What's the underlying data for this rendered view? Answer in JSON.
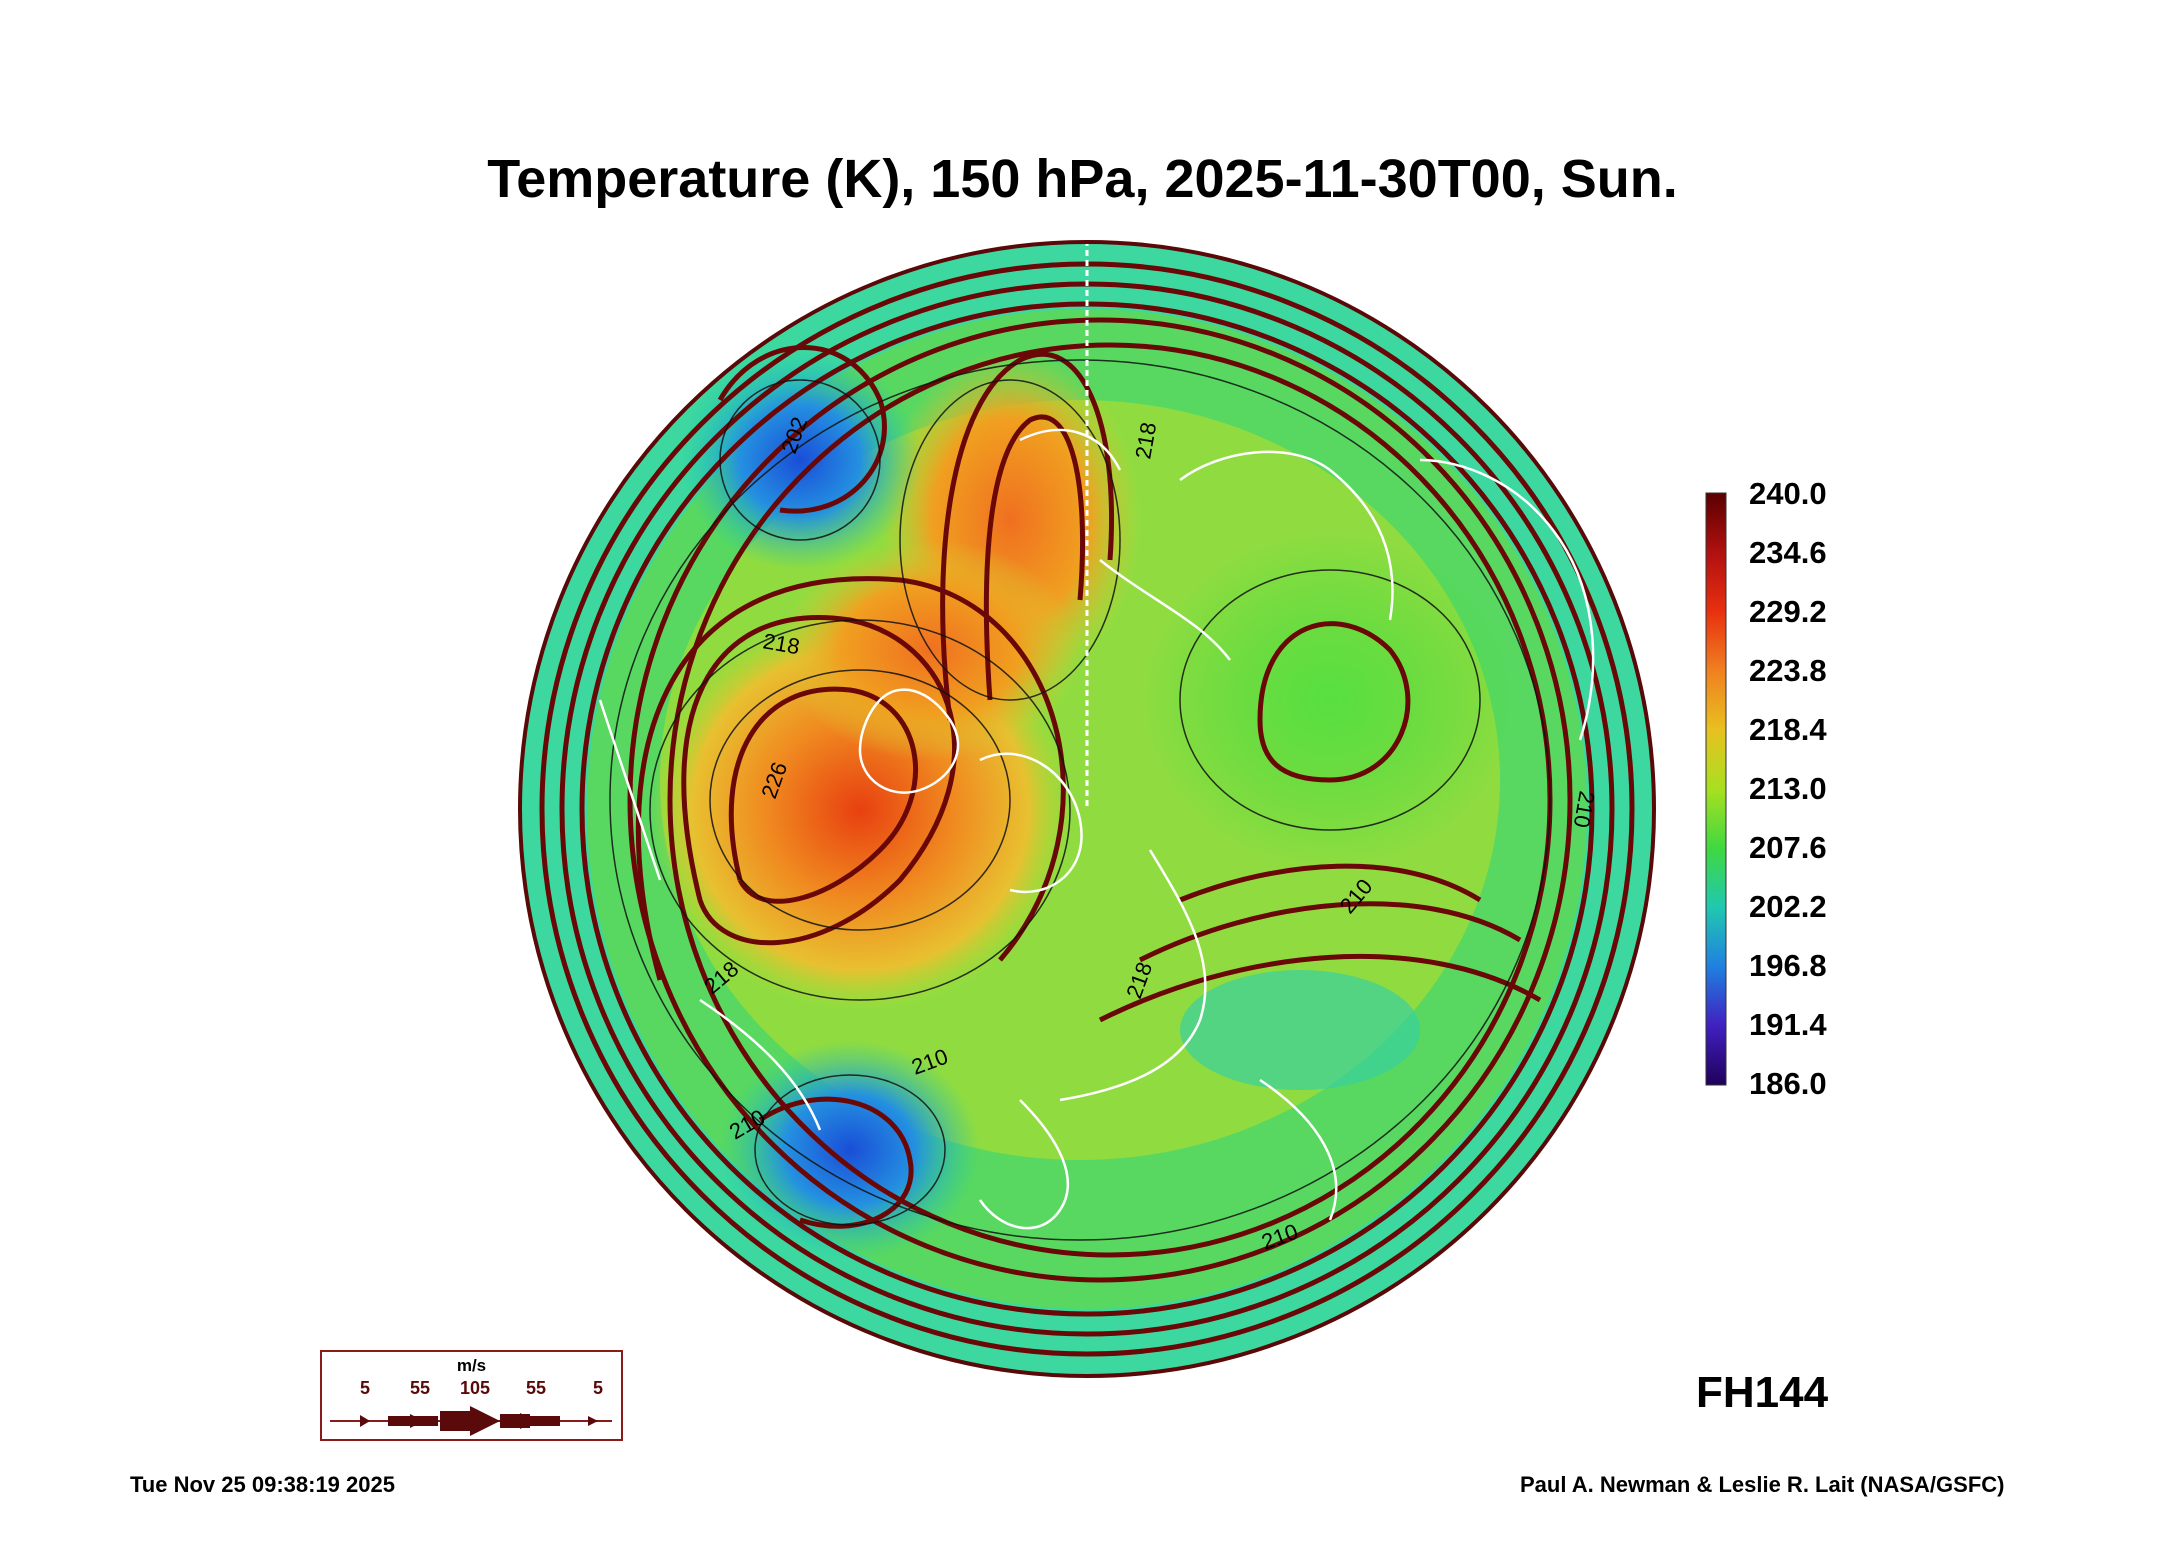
{
  "title": "Temperature (K), 150 hPa, 2025-11-30T00, Sun.",
  "colorbar": {
    "ticks": [
      "240.0",
      "234.6",
      "229.2",
      "223.8",
      "218.4",
      "213.0",
      "207.6",
      "202.2",
      "196.8",
      "191.4",
      "186.0"
    ],
    "min": 186.0,
    "max": 240.0,
    "colors": [
      "#5a0000",
      "#b01010",
      "#e83010",
      "#f08020",
      "#e8c020",
      "#a8e020",
      "#40d840",
      "#20c8b0",
      "#2080e0",
      "#4020c0",
      "#20005a"
    ]
  },
  "contour_labels": [
    "202",
    "218",
    "218",
    "226",
    "218",
    "210",
    "210",
    "210",
    "218",
    "210",
    "210"
  ],
  "forecast_hour": "FH144",
  "wind_legend": {
    "unit": "m/s",
    "values": [
      "5",
      "55",
      "105",
      "55",
      "5"
    ]
  },
  "timestamp": "Tue Nov 25 09:38:19 2025",
  "credit": "Paul A. Newman & Leslie R. Lait (NASA/GSFC)"
}
